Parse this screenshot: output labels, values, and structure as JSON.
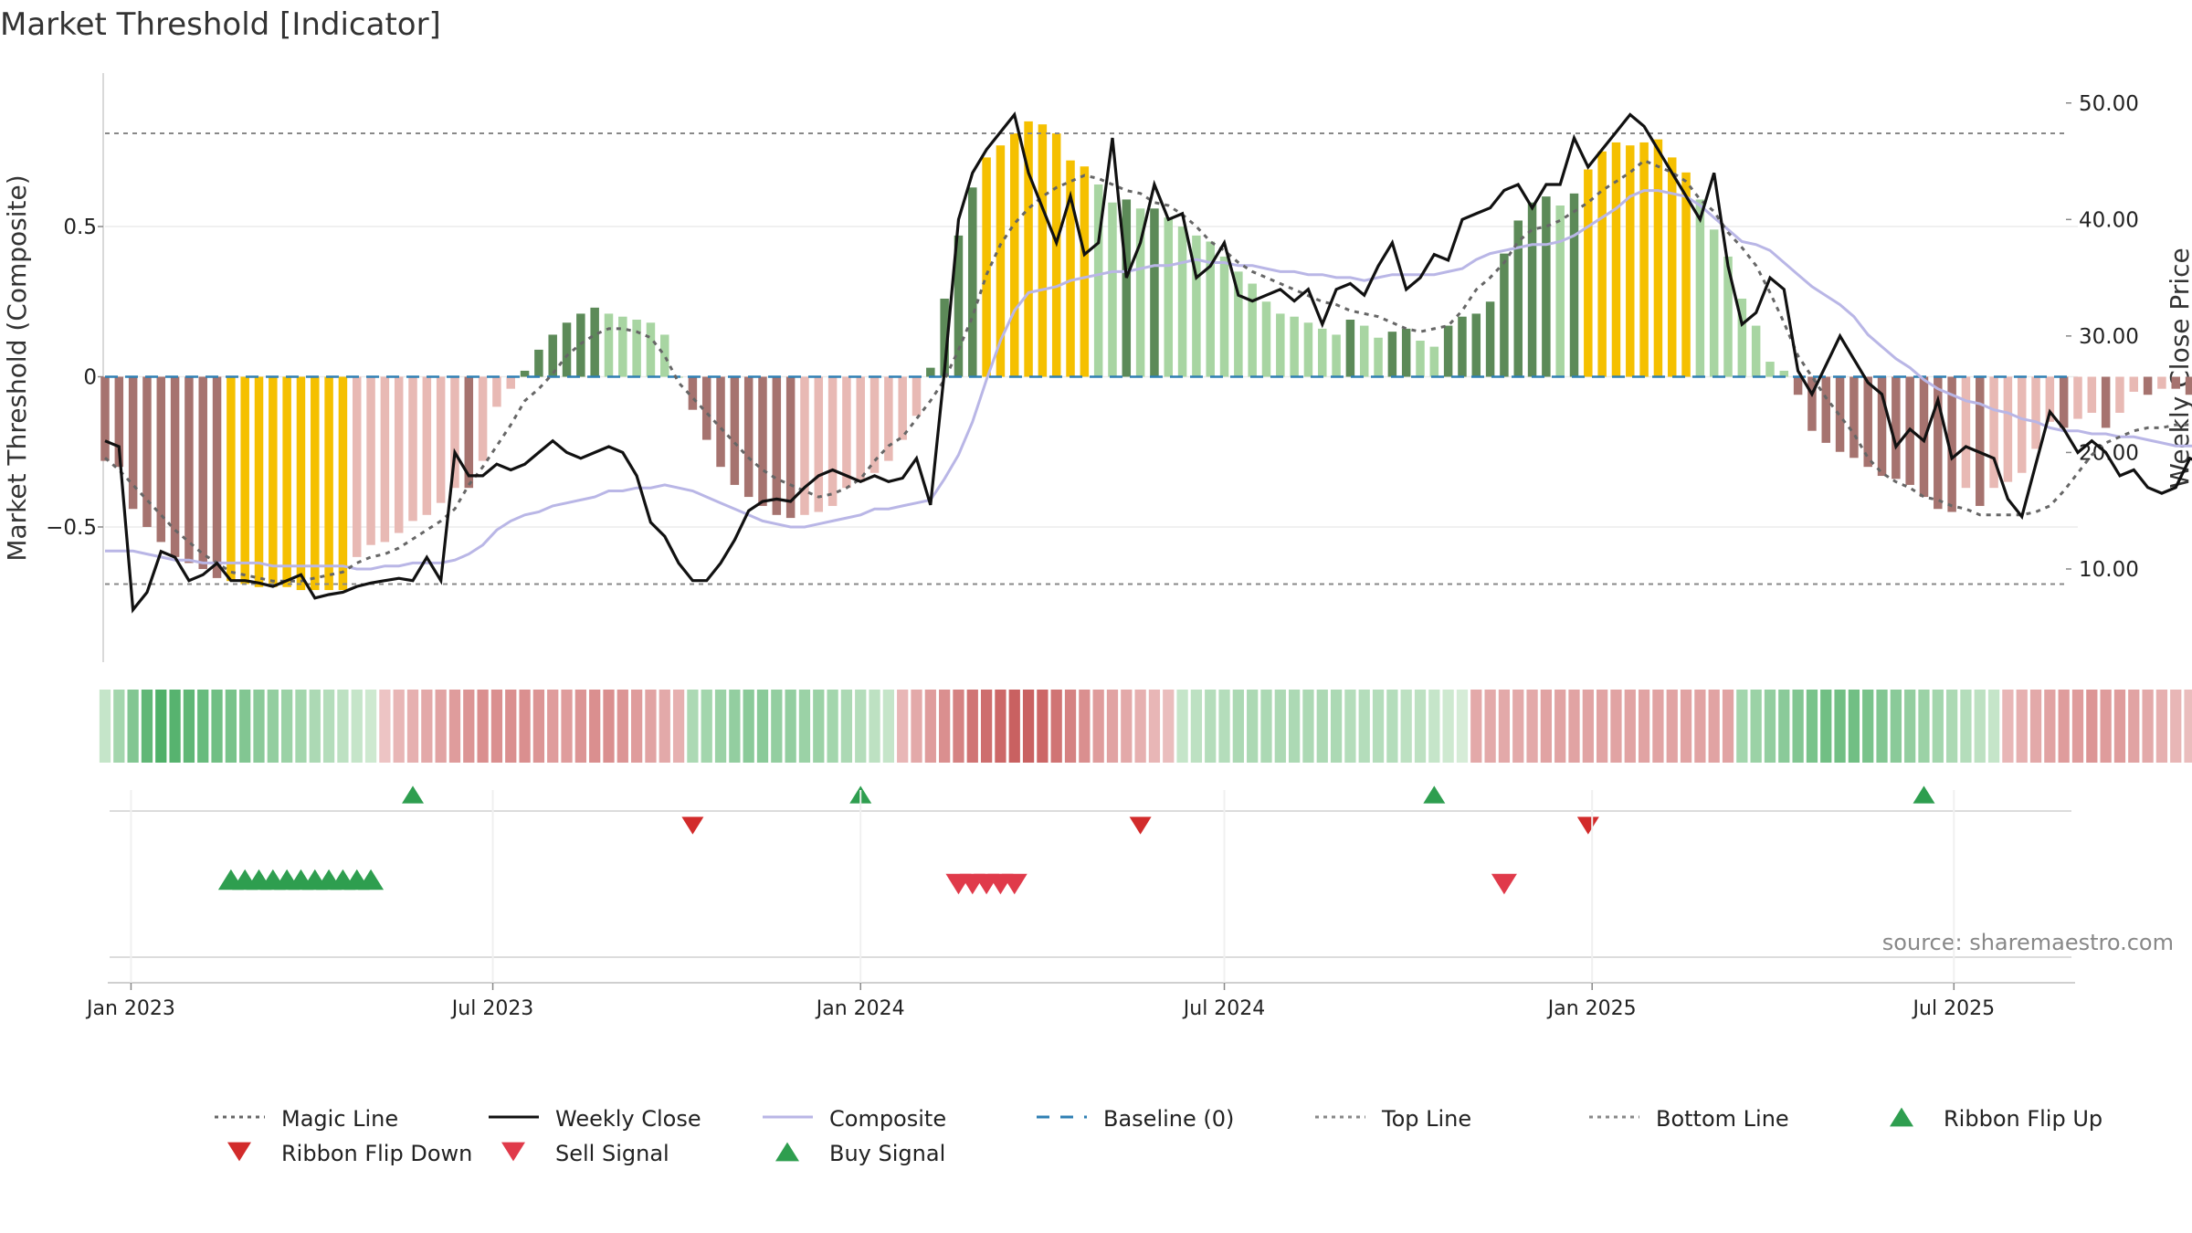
{
  "chart_data": {
    "type": "bar",
    "title": "Market Threshold [Indicator]",
    "ylabel_left": "Market Threshold (Composite)",
    "ylabel_right": "Weekly Close Price",
    "source": "source: sharemaestro.com",
    "left_axis": {
      "ylim": [
        -0.95,
        0.95
      ],
      "ticks": [
        0.5,
        0,
        -0.5
      ],
      "tick_labels": [
        "0.5",
        "0",
        "−0.5"
      ]
    },
    "right_axis": {
      "ylim": [
        2.0,
        51.0
      ],
      "ticks": [
        50,
        40,
        30,
        20,
        10
      ],
      "tick_labels": [
        "50.00",
        "40.00",
        "30.00",
        "20.00",
        "10.00"
      ]
    },
    "x_axis": {
      "start": "2022-12-19",
      "end": "2025-09-01",
      "ticks": [
        "2023-01-01",
        "2023-07-01",
        "2024-01-01",
        "2024-07-01",
        "2025-01-01",
        "2025-07-01"
      ],
      "tick_labels": [
        "Jan 2023",
        "Jul 2023",
        "Jan 2024",
        "Jul 2024",
        "Jan 2025",
        "Jul 2025"
      ]
    },
    "reference_lines": {
      "top_line": 0.81,
      "bottom_line": -0.69,
      "baseline": 0
    },
    "colors": {
      "strong_pos": "#5c8a58",
      "weak_pos": "#a8d5a2",
      "strong_neg": "#a6736f",
      "weak_neg": "#e8b9b4",
      "extreme": "#f5c000",
      "weekly_close": "#111111",
      "composite": "#b9b6e6",
      "magic": "#666666",
      "baseline": "#2f7fb3",
      "buy": "#2e9e4f",
      "sell": "#e03a4a",
      "flip_down": "#d22b2b"
    },
    "composite_bars": [
      -0.28,
      -0.3,
      -0.44,
      -0.5,
      -0.55,
      -0.6,
      -0.62,
      -0.64,
      -0.67,
      -0.68,
      -0.69,
      -0.7,
      -0.7,
      -0.7,
      -0.71,
      -0.71,
      -0.71,
      -0.71,
      -0.6,
      -0.56,
      -0.55,
      -0.52,
      -0.48,
      -0.46,
      -0.42,
      -0.37,
      -0.37,
      -0.28,
      -0.1,
      -0.04,
      0.02,
      0.09,
      0.14,
      0.18,
      0.21,
      0.23,
      0.21,
      0.2,
      0.19,
      0.18,
      0.14,
      0.0,
      -0.11,
      -0.21,
      -0.3,
      -0.36,
      -0.4,
      -0.43,
      -0.46,
      -0.47,
      -0.46,
      -0.45,
      -0.43,
      -0.37,
      -0.35,
      -0.32,
      -0.28,
      -0.21,
      -0.13,
      0.03,
      0.26,
      0.47,
      0.63,
      0.73,
      0.77,
      0.81,
      0.85,
      0.84,
      0.81,
      0.72,
      0.7,
      0.64,
      0.58,
      0.59,
      0.56,
      0.56,
      0.53,
      0.5,
      0.47,
      0.45,
      0.4,
      0.35,
      0.31,
      0.25,
      0.21,
      0.2,
      0.18,
      0.16,
      0.14,
      0.19,
      0.17,
      0.13,
      0.15,
      0.16,
      0.12,
      0.1,
      0.17,
      0.2,
      0.21,
      0.25,
      0.41,
      0.52,
      0.58,
      0.6,
      0.57,
      0.61,
      0.69,
      0.75,
      0.78,
      0.77,
      0.78,
      0.79,
      0.73,
      0.68,
      0.59,
      0.49,
      0.4,
      0.26,
      0.17,
      0.05,
      0.02,
      -0.06,
      -0.18,
      -0.22,
      -0.25,
      -0.27,
      -0.3,
      -0.33,
      -0.34,
      -0.36,
      -0.4,
      -0.44,
      -0.45,
      -0.37,
      -0.43,
      -0.37,
      -0.35,
      -0.32,
      -0.24,
      -0.15,
      -0.17,
      -0.14,
      -0.12,
      -0.17,
      -0.12,
      -0.05,
      -0.06,
      -0.04,
      -0.04,
      -0.06,
      -0.11,
      -0.16,
      -0.13,
      -0.1,
      -0.08,
      -0.06,
      -0.02,
      0.02,
      0.04,
      0.08
    ],
    "weekly_close": [
      21.0,
      20.5,
      6.5,
      8.0,
      11.5,
      11.0,
      9.0,
      9.5,
      10.5,
      9.0,
      9.0,
      8.8,
      8.5,
      9.0,
      9.5,
      7.5,
      7.8,
      8.0,
      8.5,
      8.8,
      9.0,
      9.2,
      9.0,
      11.0,
      9.0,
      20.0,
      18.0,
      18.0,
      19.0,
      18.5,
      19.0,
      20.0,
      21.0,
      20.0,
      19.5,
      20.0,
      20.5,
      20.0,
      18.0,
      14.0,
      12.8,
      10.5,
      9.0,
      9.0,
      10.5,
      12.5,
      15.0,
      15.8,
      16.0,
      15.8,
      17.0,
      18.0,
      18.5,
      18.0,
      17.5,
      18.0,
      17.5,
      17.8,
      19.5,
      15.5,
      27.0,
      40.0,
      44.0,
      46.0,
      47.5,
      49.0,
      44.0,
      41.0,
      38.0,
      42.0,
      37.0,
      38.0,
      47.0,
      35.0,
      38.0,
      43.0,
      40.0,
      40.5,
      35.0,
      36.0,
      38.0,
      33.5,
      33.0,
      33.5,
      34.0,
      33.0,
      34.0,
      31.0,
      34.0,
      34.5,
      33.5,
      36.0,
      38.0,
      34.0,
      35.0,
      37.0,
      36.5,
      40.0,
      40.5,
      41.0,
      42.5,
      43.0,
      41.0,
      43.0,
      43.0,
      47.0,
      44.5,
      46.0,
      47.5,
      49.0,
      48.0,
      46.0,
      44.0,
      42.0,
      40.0,
      44.0,
      36.0,
      31.0,
      32.0,
      35.0,
      34.0,
      27.0,
      25.0,
      27.5,
      30.0,
      28.0,
      26.0,
      25.0,
      20.5,
      22.0,
      21.0,
      24.5,
      19.5,
      20.5,
      20.0,
      19.5,
      16.0,
      14.5,
      19.0,
      23.5,
      22.0,
      20.0,
      21.0,
      20.0,
      18.0,
      18.5,
      17.0,
      16.5,
      17.0,
      19.5,
      19.0,
      19.5,
      18.0,
      17.5,
      18.0,
      18.5,
      20.5,
      19.5,
      19.0,
      21.0,
      22.0
    ],
    "composite_line": [
      -0.58,
      -0.58,
      -0.58,
      -0.59,
      -0.6,
      -0.61,
      -0.61,
      -0.62,
      -0.62,
      -0.62,
      -0.62,
      -0.62,
      -0.63,
      -0.63,
      -0.63,
      -0.63,
      -0.63,
      -0.63,
      -0.64,
      -0.64,
      -0.63,
      -0.63,
      -0.62,
      -0.62,
      -0.62,
      -0.61,
      -0.59,
      -0.56,
      -0.51,
      -0.48,
      -0.46,
      -0.45,
      -0.43,
      -0.42,
      -0.41,
      -0.4,
      -0.38,
      -0.38,
      -0.37,
      -0.37,
      -0.36,
      -0.37,
      -0.38,
      -0.4,
      -0.42,
      -0.44,
      -0.46,
      -0.48,
      -0.49,
      -0.5,
      -0.5,
      -0.49,
      -0.48,
      -0.47,
      -0.46,
      -0.44,
      -0.44,
      -0.43,
      -0.42,
      -0.41,
      -0.34,
      -0.26,
      -0.15,
      -0.01,
      0.12,
      0.22,
      0.28,
      0.29,
      0.3,
      0.32,
      0.33,
      0.34,
      0.35,
      0.35,
      0.36,
      0.37,
      0.37,
      0.38,
      0.39,
      0.38,
      0.38,
      0.37,
      0.37,
      0.36,
      0.35,
      0.35,
      0.34,
      0.34,
      0.33,
      0.33,
      0.32,
      0.33,
      0.34,
      0.34,
      0.34,
      0.34,
      0.35,
      0.36,
      0.39,
      0.41,
      0.42,
      0.43,
      0.44,
      0.44,
      0.45,
      0.47,
      0.5,
      0.53,
      0.56,
      0.6,
      0.62,
      0.62,
      0.61,
      0.6,
      0.57,
      0.53,
      0.49,
      0.45,
      0.44,
      0.42,
      0.38,
      0.34,
      0.3,
      0.27,
      0.24,
      0.2,
      0.14,
      0.1,
      0.06,
      0.03,
      -0.01,
      -0.04,
      -0.06,
      -0.08,
      -0.09,
      -0.11,
      -0.12,
      -0.14,
      -0.15,
      -0.17,
      -0.18,
      -0.18,
      -0.19,
      -0.19,
      -0.2,
      -0.2,
      -0.21,
      -0.22,
      -0.23,
      -0.23,
      -0.23,
      -0.23,
      -0.24,
      -0.24,
      -0.25,
      -0.26,
      -0.26,
      -0.26,
      -0.26,
      -0.27,
      -0.24
    ],
    "magic_line": [
      -0.27,
      -0.31,
      -0.36,
      -0.41,
      -0.46,
      -0.51,
      -0.55,
      -0.59,
      -0.62,
      -0.65,
      -0.66,
      -0.67,
      -0.68,
      -0.68,
      -0.68,
      -0.67,
      -0.66,
      -0.65,
      -0.62,
      -0.6,
      -0.59,
      -0.57,
      -0.54,
      -0.51,
      -0.48,
      -0.44,
      -0.36,
      -0.3,
      -0.23,
      -0.16,
      -0.08,
      -0.04,
      0.01,
      0.07,
      0.11,
      0.14,
      0.16,
      0.16,
      0.15,
      0.13,
      0.07,
      -0.02,
      -0.07,
      -0.12,
      -0.17,
      -0.22,
      -0.27,
      -0.31,
      -0.34,
      -0.36,
      -0.38,
      -0.4,
      -0.39,
      -0.37,
      -0.34,
      -0.28,
      -0.23,
      -0.2,
      -0.14,
      -0.08,
      -0.01,
      0.09,
      0.2,
      0.34,
      0.44,
      0.51,
      0.56,
      0.6,
      0.63,
      0.65,
      0.67,
      0.66,
      0.64,
      0.62,
      0.61,
      0.58,
      0.57,
      0.54,
      0.5,
      0.45,
      0.42,
      0.38,
      0.35,
      0.33,
      0.31,
      0.29,
      0.27,
      0.25,
      0.24,
      0.22,
      0.21,
      0.2,
      0.18,
      0.16,
      0.15,
      0.16,
      0.17,
      0.22,
      0.29,
      0.33,
      0.38,
      0.45,
      0.49,
      0.5,
      0.52,
      0.55,
      0.58,
      0.62,
      0.65,
      0.68,
      0.72,
      0.7,
      0.68,
      0.65,
      0.59,
      0.55,
      0.48,
      0.43,
      0.37,
      0.28,
      0.18,
      0.07,
      0.0,
      -0.07,
      -0.13,
      -0.19,
      -0.27,
      -0.32,
      -0.35,
      -0.37,
      -0.4,
      -0.41,
      -0.43,
      -0.44,
      -0.46,
      -0.46,
      -0.46,
      -0.46,
      -0.45,
      -0.43,
      -0.38,
      -0.32,
      -0.26,
      -0.22,
      -0.2,
      -0.18,
      -0.17,
      -0.17,
      -0.16,
      -0.16,
      -0.16,
      -0.16,
      -0.17,
      -0.16,
      -0.15,
      -0.15,
      -0.14,
      -0.13,
      -0.12,
      -0.09,
      -0.05,
      -0.01
    ],
    "ribbon": [
      0.2,
      0.4,
      0.6,
      0.8,
      0.9,
      0.85,
      0.8,
      0.75,
      0.7,
      0.65,
      0.6,
      0.55,
      0.5,
      0.45,
      0.4,
      0.35,
      0.3,
      0.25,
      0.2,
      0.15,
      -0.2,
      -0.3,
      -0.35,
      -0.4,
      -0.45,
      -0.5,
      -0.55,
      -0.6,
      -0.6,
      -0.6,
      -0.6,
      -0.55,
      -0.5,
      -0.5,
      -0.55,
      -0.6,
      -0.6,
      -0.55,
      -0.5,
      -0.45,
      -0.4,
      -0.35,
      0.35,
      0.4,
      0.45,
      0.5,
      0.55,
      0.55,
      0.5,
      0.5,
      0.45,
      0.45,
      0.4,
      0.35,
      0.3,
      0.25,
      0.2,
      -0.3,
      -0.4,
      -0.5,
      -0.6,
      -0.7,
      -0.8,
      -0.85,
      -0.9,
      -0.95,
      -0.95,
      -0.9,
      -0.8,
      -0.7,
      -0.6,
      -0.5,
      -0.45,
      -0.4,
      -0.35,
      -0.3,
      -0.25,
      0.2,
      0.25,
      0.3,
      0.3,
      0.35,
      0.35,
      0.35,
      0.35,
      0.35,
      0.35,
      0.35,
      0.35,
      0.3,
      0.3,
      0.3,
      0.3,
      0.25,
      0.25,
      0.2,
      0.15,
      0.1,
      -0.4,
      -0.4,
      -0.4,
      -0.4,
      -0.4,
      -0.45,
      -0.45,
      -0.45,
      -0.45,
      -0.45,
      -0.45,
      -0.45,
      -0.45,
      -0.45,
      -0.45,
      -0.45,
      -0.45,
      -0.45,
      -0.45,
      0.4,
      0.45,
      0.5,
      0.55,
      0.6,
      0.65,
      0.7,
      0.7,
      0.7,
      0.65,
      0.6,
      0.55,
      0.5,
      0.45,
      0.4,
      0.35,
      0.3,
      0.25,
      0.2,
      -0.3,
      -0.35,
      -0.4,
      -0.45,
      -0.5,
      -0.5,
      -0.55,
      -0.5,
      -0.5,
      -0.45,
      -0.4,
      -0.35,
      -0.3,
      -0.25,
      -0.2,
      -0.15,
      -0.1
    ],
    "ribbon_flip_up": [
      "2023-05-22",
      "2024-01-01",
      "2024-10-14",
      "2025-06-16"
    ],
    "ribbon_flip_down": [
      "2023-10-09",
      "2024-05-20",
      "2024-12-30"
    ],
    "buy_signal": [
      "2023-02-20",
      "2023-02-27",
      "2023-03-06",
      "2023-03-13",
      "2023-03-20",
      "2023-03-27",
      "2023-04-03",
      "2023-04-10",
      "2023-04-17",
      "2023-04-24",
      "2023-05-01"
    ],
    "sell_signal": [
      "2024-02-19",
      "2024-02-26",
      "2024-03-04",
      "2024-03-11",
      "2024-03-18",
      "2024-11-18"
    ]
  },
  "legend": [
    {
      "label": "Magic Line",
      "icon": "dotted-line",
      "color": "#666666"
    },
    {
      "label": "Weekly Close",
      "icon": "solid-line",
      "color": "#111111"
    },
    {
      "label": "Composite",
      "icon": "solid-line",
      "color": "#b9b6e6"
    },
    {
      "label": "Baseline (0)",
      "icon": "dashed-line",
      "color": "#2f7fb3"
    },
    {
      "label": "Top Line",
      "icon": "dotted-line",
      "color": "#888888"
    },
    {
      "label": "Bottom Line",
      "icon": "dotted-line",
      "color": "#888888"
    },
    {
      "label": "Ribbon Flip Up",
      "icon": "triangle-up",
      "color": "#2e9e4f"
    },
    {
      "label": "Ribbon Flip Down",
      "icon": "triangle-down",
      "color": "#d22b2b"
    },
    {
      "label": "Sell Signal",
      "icon": "triangle-down",
      "color": "#e03a4a"
    },
    {
      "label": "Buy Signal",
      "icon": "triangle-up",
      "color": "#2e9e4f"
    }
  ]
}
